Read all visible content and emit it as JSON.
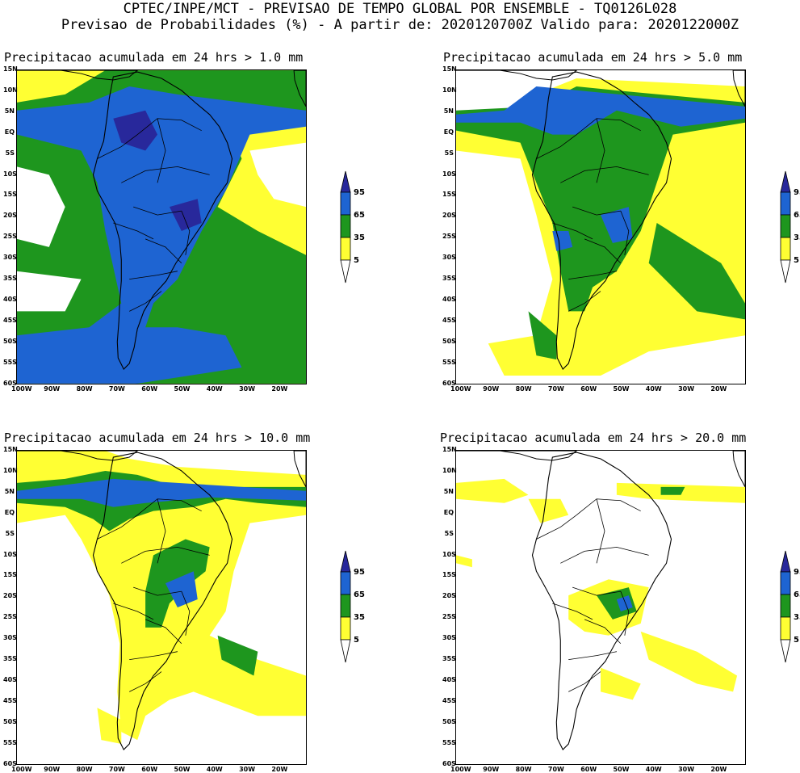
{
  "header": {
    "line1": "CPTEC/INPE/MCT - PREVISAO DE TEMPO GLOBAL POR ENSEMBLE - TQ0126L028",
    "line2": "Previsao de Probabilidades (%) -  A partir de: 2020120700Z  Valido para: 2020122000Z"
  },
  "panels": [
    {
      "title": "Precipitacao acumulada em 24 hrs > 1.0 mm"
    },
    {
      "title": "Precipitacao acumulada em 24 hrs > 5.0 mm"
    },
    {
      "title": "Precipitacao acumulada em 24 hrs > 10.0 mm"
    },
    {
      "title": "Precipitacao acumulada em 24 hrs > 20.0 mm"
    }
  ],
  "lat_labels": [
    "15N",
    "10N",
    "5N",
    "EQ",
    "5S",
    "10S",
    "15S",
    "20S",
    "25S",
    "30S",
    "35S",
    "40S",
    "45S",
    "50S",
    "55S",
    "60S"
  ],
  "lon_labels": [
    "100W",
    "90W",
    "80W",
    "70W",
    "60W",
    "50W",
    "40W",
    "30W",
    "20W"
  ],
  "legend": {
    "levels": [
      "95",
      "65",
      "35",
      "5"
    ],
    "colors": {
      "yellow": "#ffff33",
      "green": "#1e961e",
      "blue": "#1e64d2",
      "dark_blue": "#28289b"
    }
  }
}
